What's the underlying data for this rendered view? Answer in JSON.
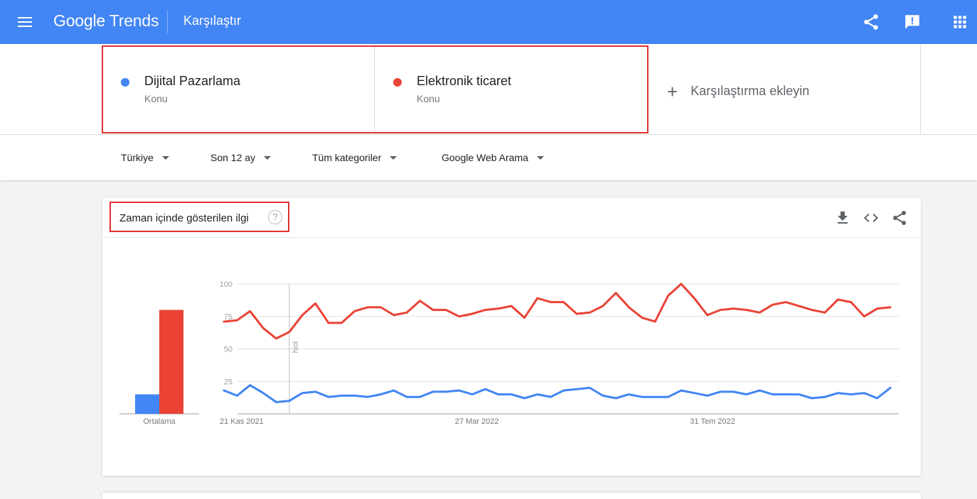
{
  "header": {
    "logo_google": "Google",
    "logo_trends": "Trends",
    "page_title": "Karşılaştır",
    "icons": [
      "menu-icon",
      "share-icon",
      "feedback-icon",
      "apps-icon"
    ]
  },
  "compare": {
    "terms": [
      {
        "name": "Dijital Pazarlama",
        "type": "Konu",
        "color": "#4285f4"
      },
      {
        "name": "Elektronik ticaret",
        "type": "Konu",
        "color": "#ea4335"
      }
    ],
    "add_label": "Karşılaştırma ekleyin"
  },
  "filters": {
    "region": "Türkiye",
    "period": "Son 12 ay",
    "category": "Tüm kategoriler",
    "property": "Google Web Arama"
  },
  "interest_card": {
    "title": "Zaman içinde gösterilen ilgi",
    "help": "?",
    "icons": [
      "download-icon",
      "embed-icon",
      "share-icon"
    ]
  },
  "chart_data": [
    {
      "type": "bar",
      "categories": [
        "Ortalama"
      ],
      "series": [
        {
          "name": "Dijital Pazarlama",
          "values": [
            15
          ],
          "color": "#4285f4"
        },
        {
          "name": "Elektronik ticaret",
          "values": [
            80
          ],
          "color": "#ea4335"
        }
      ],
      "ylim": [
        0,
        100
      ]
    },
    {
      "type": "line",
      "x_tick_labels": [
        "21 Kas 2021",
        "27 Mar 2022",
        "31 Tem 2022"
      ],
      "y_ticks": [
        25,
        50,
        75,
        100
      ],
      "ylim": [
        0,
        100
      ],
      "annotation": "Not",
      "grid": true,
      "series": [
        {
          "name": "Elektronik ticaret",
          "color": "#ea4335",
          "values": [
            71,
            72,
            79,
            66,
            58,
            63,
            76,
            85,
            70,
            70,
            79,
            82,
            82,
            76,
            78,
            87,
            80,
            80,
            75,
            77,
            80,
            81,
            83,
            74,
            89,
            86,
            86,
            77,
            78,
            83,
            93,
            82,
            74,
            71,
            91,
            100,
            89,
            76,
            80,
            81,
            80,
            78,
            84,
            86,
            83,
            80,
            78,
            88,
            86,
            75,
            81,
            82
          ]
        },
        {
          "name": "Dijital Pazarlama",
          "color": "#4285f4",
          "values": [
            18,
            14,
            22,
            16,
            9,
            10,
            16,
            17,
            13,
            14,
            14,
            13,
            15,
            18,
            13,
            13,
            17,
            17,
            18,
            15,
            19,
            15,
            15,
            12,
            15,
            13,
            18,
            19,
            20,
            14,
            12,
            15,
            13,
            13,
            13,
            18,
            16,
            14,
            17,
            17,
            15,
            18,
            15,
            15,
            15,
            12,
            13,
            16,
            15,
            16,
            12,
            20
          ]
        }
      ]
    }
  ]
}
